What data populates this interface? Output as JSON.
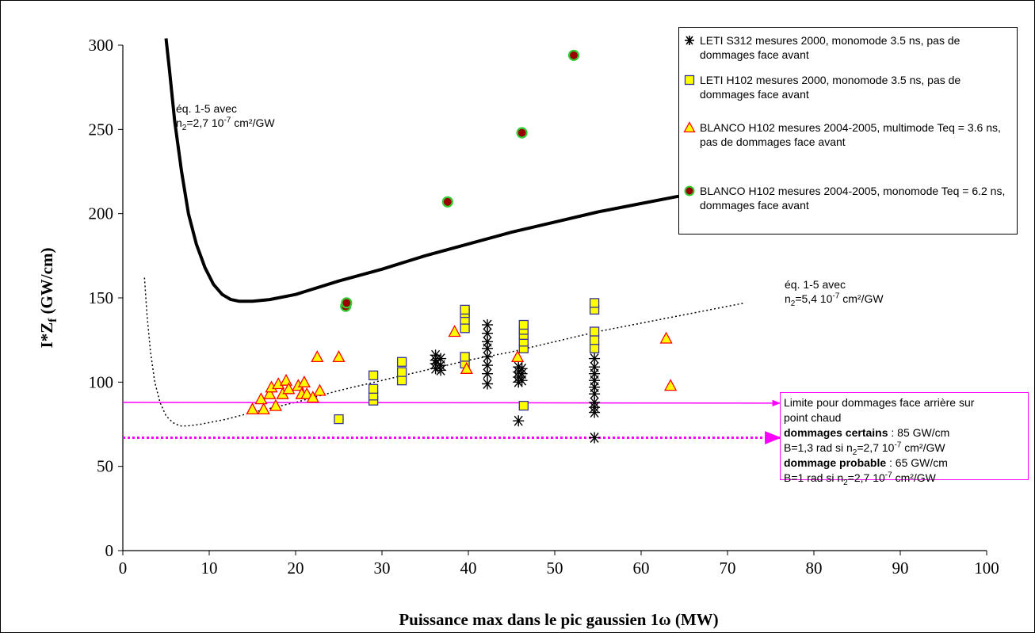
{
  "chart_data": {
    "type": "scatter",
    "xlabel": "Puissance max dans le pic gaussien 1ω (MW)",
    "ylabel_main": "I*Z",
    "ylabel_sub": "f",
    "ylabel_unit": " (GW/cm)",
    "xlim": [
      0,
      100
    ],
    "ylim": [
      0,
      300
    ],
    "x_ticks": [
      "0",
      "10",
      "20",
      "30",
      "40",
      "50",
      "60",
      "70",
      "80",
      "90",
      "100"
    ],
    "y_ticks": [
      "0",
      "50",
      "100",
      "150",
      "200",
      "250",
      "300"
    ],
    "grid": false,
    "legend_position": "top-right",
    "series": [
      {
        "name": "LETI S312 mesures 2000, monomode 3.5 ns, pas de dommages face avant",
        "marker": "asterisk",
        "color": "#000000",
        "points": [
          [
            36.2,
            108
          ],
          [
            36.2,
            111
          ],
          [
            36.2,
            113
          ],
          [
            36.2,
            116
          ],
          [
            36.8,
            107
          ],
          [
            36.8,
            110
          ],
          [
            36.8,
            114
          ],
          [
            42.2,
            99
          ],
          [
            42.2,
            105
          ],
          [
            42.2,
            110
          ],
          [
            42.2,
            115
          ],
          [
            42.2,
            120
          ],
          [
            42.2,
            124
          ],
          [
            42.2,
            129
          ],
          [
            42.2,
            134
          ],
          [
            45.8,
            77
          ],
          [
            45.8,
            100
          ],
          [
            45.8,
            103
          ],
          [
            45.8,
            106
          ],
          [
            45.8,
            109
          ],
          [
            46.2,
            101
          ],
          [
            46.2,
            105
          ],
          [
            46.2,
            108
          ],
          [
            54.6,
            67
          ],
          [
            54.6,
            82
          ],
          [
            54.6,
            85
          ],
          [
            54.6,
            88
          ],
          [
            54.6,
            93
          ],
          [
            54.6,
            97
          ],
          [
            54.6,
            101
          ],
          [
            54.6,
            105
          ],
          [
            54.6,
            109
          ],
          [
            54.6,
            114
          ]
        ]
      },
      {
        "name": "LETI H102 mesures 2000, monomode 3.5 ns, pas de dommages face avant",
        "marker": "square",
        "color": "#ffff00",
        "points": [
          [
            25.0,
            78
          ],
          [
            29.0,
            89
          ],
          [
            29.0,
            92
          ],
          [
            29.0,
            96
          ],
          [
            29.0,
            104
          ],
          [
            32.3,
            101
          ],
          [
            32.3,
            106
          ],
          [
            32.3,
            112
          ],
          [
            39.6,
            111
          ],
          [
            39.6,
            115
          ],
          [
            39.6,
            132
          ],
          [
            39.6,
            137
          ],
          [
            39.6,
            141
          ],
          [
            39.6,
            143
          ],
          [
            46.4,
            86
          ],
          [
            46.4,
            120
          ],
          [
            46.4,
            124
          ],
          [
            46.4,
            128
          ],
          [
            46.4,
            131
          ],
          [
            46.4,
            134
          ],
          [
            54.6,
            120
          ],
          [
            54.6,
            125
          ],
          [
            54.6,
            130
          ],
          [
            54.6,
            143
          ],
          [
            54.6,
            147
          ]
        ]
      },
      {
        "name": "BLANCO H102 mesures 2004-2005, multimode Teq = 3.6 ns, pas de dommages face avant",
        "marker": "triangle",
        "color": "#ffff00",
        "points": [
          [
            15.0,
            84
          ],
          [
            16.0,
            90
          ],
          [
            16.3,
            84
          ],
          [
            17.0,
            93
          ],
          [
            17.2,
            97
          ],
          [
            17.7,
            86
          ],
          [
            18.0,
            99
          ],
          [
            18.5,
            93
          ],
          [
            18.9,
            101
          ],
          [
            19.2,
            96
          ],
          [
            20.3,
            98
          ],
          [
            20.7,
            93
          ],
          [
            21.0,
            100
          ],
          [
            21.3,
            93
          ],
          [
            22.0,
            91
          ],
          [
            22.5,
            115
          ],
          [
            22.8,
            95
          ],
          [
            25.0,
            115
          ],
          [
            38.4,
            130
          ],
          [
            39.8,
            108
          ],
          [
            45.7,
            115
          ],
          [
            62.9,
            126
          ],
          [
            63.4,
            98
          ]
        ]
      },
      {
        "name": "BLANCO H102 mesures 2004-2005, monomode Teq = 6.2 ns, dommages face avant",
        "marker": "circle",
        "color": "#990000",
        "points": [
          [
            25.8,
            145
          ],
          [
            25.9,
            147
          ],
          [
            37.6,
            207
          ],
          [
            46.2,
            248
          ],
          [
            52.2,
            294
          ]
        ]
      }
    ],
    "curves": [
      {
        "label_line1": "éq. 1-5 avec",
        "label_line2_pre": "n",
        "label_line2_sub": "2",
        "label_line2_mid": "=2,7 10",
        "label_line2_sup": "-7",
        "label_line2_post": " cm²/GW",
        "style": "solid",
        "points": [
          [
            5.0,
            304
          ],
          [
            5.4,
            285
          ],
          [
            6.0,
            255
          ],
          [
            6.8,
            225
          ],
          [
            7.6,
            200
          ],
          [
            8.5,
            182
          ],
          [
            9.5,
            168
          ],
          [
            10.5,
            158
          ],
          [
            11.5,
            152
          ],
          [
            12.5,
            149
          ],
          [
            13.5,
            148
          ],
          [
            15.0,
            148
          ],
          [
            17.0,
            149
          ],
          [
            20.0,
            152
          ],
          [
            25.0,
            160
          ],
          [
            30.0,
            167
          ],
          [
            35.0,
            175
          ],
          [
            40.0,
            182
          ],
          [
            45.0,
            189
          ],
          [
            50.0,
            195
          ],
          [
            55.0,
            201
          ],
          [
            60.0,
            206
          ],
          [
            65.0,
            211
          ],
          [
            70.0,
            216
          ],
          [
            75.0,
            221
          ],
          [
            78.0,
            224
          ]
        ]
      },
      {
        "label_line1": "éq. 1-5 avec",
        "label_line2_pre": "n",
        "label_line2_sub": "2",
        "label_line2_mid": "=5,4 10",
        "label_line2_sup": "-7",
        "label_line2_post": " cm²/GW",
        "style": "dotted",
        "points": [
          [
            2.5,
            162
          ],
          [
            2.8,
            140
          ],
          [
            3.2,
            118
          ],
          [
            3.7,
            100
          ],
          [
            4.3,
            88
          ],
          [
            5.0,
            80
          ],
          [
            5.8,
            76
          ],
          [
            6.6,
            74
          ],
          [
            7.5,
            74
          ],
          [
            9.0,
            75
          ],
          [
            12.0,
            78
          ],
          [
            15.0,
            82
          ],
          [
            20.0,
            88
          ],
          [
            25.0,
            95
          ],
          [
            30.0,
            101
          ],
          [
            35.0,
            107
          ],
          [
            40.0,
            113
          ],
          [
            45.0,
            118
          ],
          [
            50.0,
            124
          ],
          [
            55.0,
            130
          ],
          [
            60.0,
            135
          ],
          [
            65.0,
            140
          ],
          [
            70.0,
            145
          ],
          [
            72.0,
            147
          ]
        ]
      }
    ],
    "limits": [
      {
        "value": 88,
        "x_start": 0,
        "style": "solid",
        "color": "#ff00ff"
      },
      {
        "value": 67,
        "x_start": 0,
        "style": "dotted",
        "color": "#ff00ff"
      }
    ],
    "limit_box": {
      "line1": "Limite pour dommages face arrière sur",
      "line2": "point chaud",
      "certain_bold": "dommages certains",
      "certain_rest": " : 85 GW/cm",
      "b1_pre": "B=1,3 rad si n",
      "b1_sub": "2",
      "b1_mid": "=2,7 10",
      "b1_sup": "-7",
      "b1_post": " cm²/GW",
      "probable_bold": "dommage probable",
      "probable_rest": " : 65 GW/cm",
      "b2_pre": "B=1 rad si n",
      "b2_sub": "2",
      "b2_mid": "=2,7 10",
      "b2_sup": "-7",
      "b2_post": " cm²/GW"
    }
  }
}
